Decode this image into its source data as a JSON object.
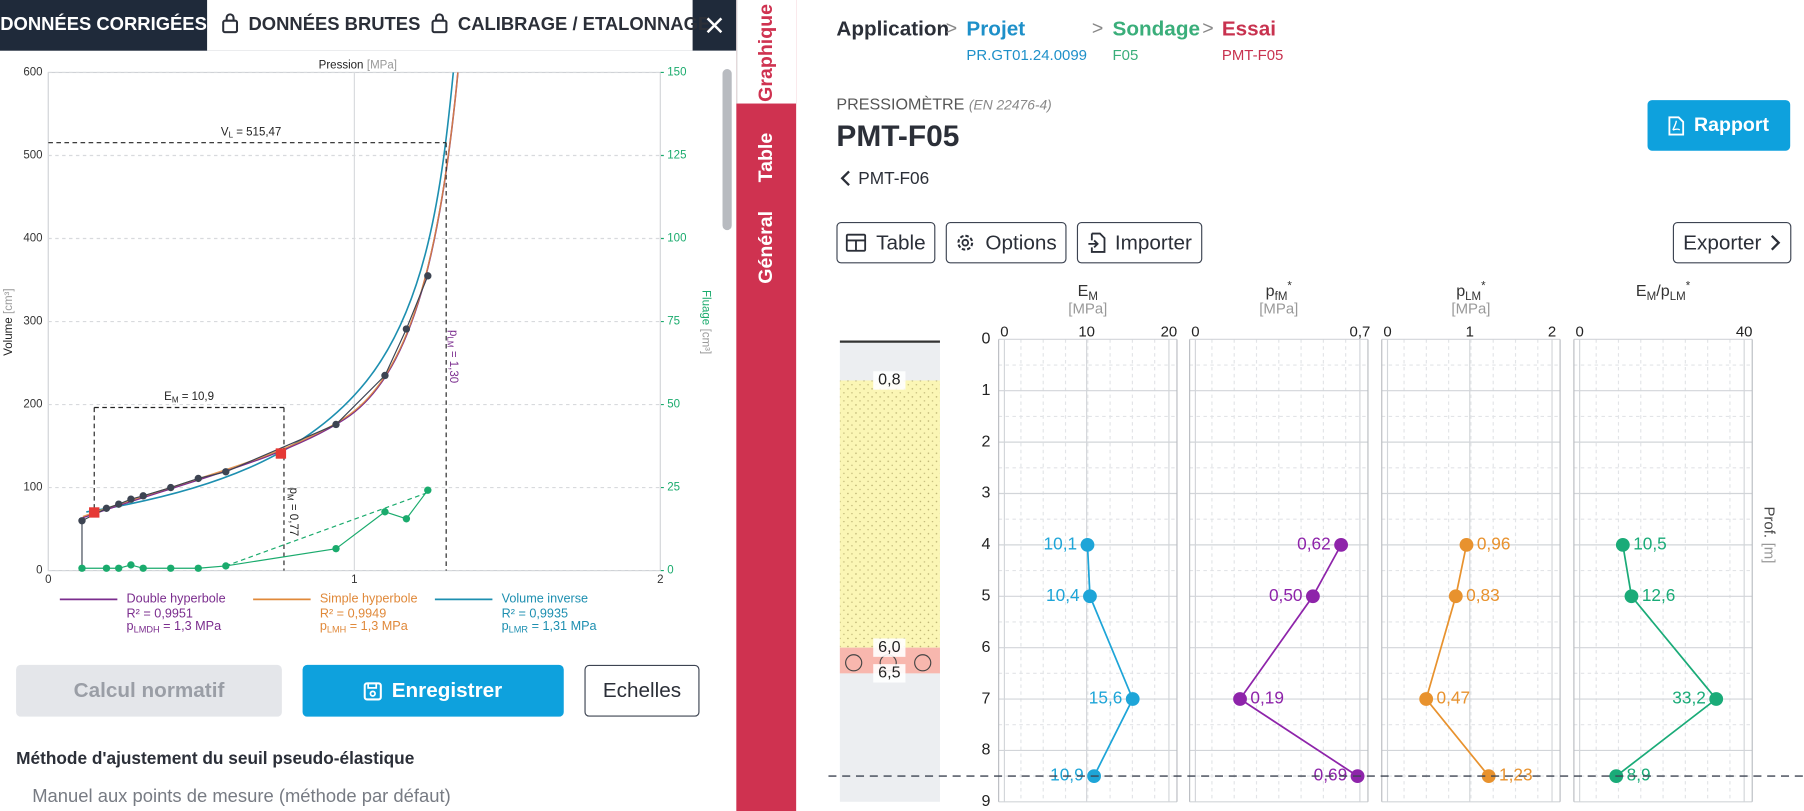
{
  "tabs": {
    "corrected": "DONNÉES CORRIGÉES",
    "raw": "DONNÉES BRUTES",
    "calibration": "CALIBRAGE / ETALONNAGE"
  },
  "side_tabs": [
    "Graphique",
    "Table",
    "Général"
  ],
  "pressure_chart": {
    "type": "scatter",
    "x_label": "Pression",
    "x_unit": "[MPa]",
    "y_unit": "[cm³]",
    "y2_unit": "[cm³]",
    "xlim": [
      0,
      2
    ],
    "xticks": [
      0,
      1,
      2
    ],
    "ylim": [
      0,
      600
    ],
    "yticks": [
      0,
      100,
      200,
      300,
      400,
      500,
      600
    ],
    "y2lim": [
      0,
      150
    ],
    "y2ticks": [
      0,
      25,
      50,
      75,
      100,
      125,
      150
    ],
    "x": [
      0.11,
      0.19,
      0.23,
      0.27,
      0.31,
      0.4,
      0.49,
      0.58,
      0.94,
      1.1,
      1.17,
      1.24
    ],
    "series": [
      {
        "name": "Volume",
        "color": "#3d4452",
        "values": [
          60,
          75,
          80,
          86,
          90,
          100,
          111,
          119,
          176,
          235,
          291,
          355
        ]
      },
      {
        "name": "Fluage",
        "color": "#1aab6d",
        "axis": "y2",
        "values": [
          0.7,
          0.7,
          0.7,
          1.7,
          0.7,
          0.7,
          0.7,
          1.4,
          6.6,
          17.7,
          15.6,
          24.2
        ]
      }
    ],
    "annotations": {
      "vl": {
        "value": 515.47,
        "symbol": "V",
        "sub": "L",
        "text": " = 515,47"
      },
      "plm": {
        "value": 1.3,
        "symbol": "p",
        "sub": "LM",
        "text": " = 1,30"
      },
      "pm": {
        "value": 0.77,
        "symbol": "p",
        "sub": "M",
        "text": " = 0,77"
      },
      "em": {
        "symbol": "E",
        "sub": "M",
        "text": " = 10,9",
        "x": [
          0.15,
          0.76
        ],
        "values": [
          70,
          141
        ]
      }
    },
    "legend": [
      {
        "name": "Double hyperbole",
        "color": "#7b2d8e",
        "r2": "R² = 0,9951",
        "p": {
          "symbol": "p",
          "sub": "LMDH",
          "text": " = 1,3 MPa"
        }
      },
      {
        "name": "Simple hyperbole",
        "color": "#e0893a",
        "r2": "R² = 0,9949",
        "p": {
          "symbol": "p",
          "sub": "LMH",
          "text": " = 1,3 MPa"
        }
      },
      {
        "name": "Volume inverse",
        "color": "#1d8fb0",
        "r2": "R² = 0,9935",
        "p": {
          "symbol": "p",
          "sub": "LMR",
          "text": " = 1,31 MPa"
        }
      }
    ]
  },
  "buttons": {
    "normative": "Calcul normatif",
    "save": "Enregistrer",
    "scales": "Echelles"
  },
  "method": {
    "title": "Méthode d'ajustement du seuil pseudo-élastique",
    "value": "Manuel aux points de mesure (méthode par défaut)"
  },
  "breadcrumb": {
    "root": "Application",
    "items": [
      {
        "label": "Projet",
        "sub": "PR.GT01.24.0099"
      },
      {
        "label": "Sondage",
        "sub": "F05"
      },
      {
        "label": "Essai",
        "sub": "PMT-F05"
      }
    ]
  },
  "header": {
    "kind": "PRESSIOMÈTRE",
    "norm": "(EN 22476-4)",
    "title": "PMT-F05",
    "previous": "PMT-F06",
    "report": "Rapport"
  },
  "toolbar": {
    "table": "Table",
    "options": "Options",
    "import": "Importer",
    "export": "Exporter"
  },
  "profile": {
    "depth_label": "Prof.",
    "depth_unit": "[m]",
    "ylim": [
      0,
      9
    ],
    "yticks": [
      0,
      1,
      2,
      3,
      4,
      5,
      6,
      7,
      8,
      9
    ],
    "depths": [
      4,
      5,
      7,
      8.5
    ],
    "layers": [
      {
        "value": 0.8,
        "label": "0,8"
      },
      {
        "value": 6.0,
        "label": "6,0"
      },
      {
        "value": 6.5,
        "label": "6,5"
      }
    ],
    "columns": [
      {
        "header": [
          {
            "text": "E"
          },
          {
            "text": "M",
            "style": "sub"
          }
        ],
        "unit": "[MPa]",
        "xlim": [
          0,
          20
        ],
        "xticks": [
          0,
          10,
          20
        ],
        "color": "#1ea5d8",
        "values": [
          10.1,
          10.4,
          15.6,
          10.9
        ],
        "value_labels": [
          "10,1",
          "10,4",
          "15,6",
          "10,9"
        ]
      },
      {
        "header": [
          {
            "text": "p"
          },
          {
            "text": "fM",
            "style": "sub"
          },
          {
            "text": "*",
            "style": "sup"
          }
        ],
        "unit": "[MPa]",
        "xlim": [
          0,
          0.7
        ],
        "xticks": [
          0,
          {
            "value": 0.7,
            "label": "0,7"
          }
        ],
        "color": "#8e24aa",
        "values": [
          0.62,
          0.5,
          0.19,
          0.69
        ],
        "value_labels": [
          "0,62",
          "0,50",
          "0,19",
          "0,69"
        ]
      },
      {
        "header": [
          {
            "text": "p"
          },
          {
            "text": "LM",
            "style": "sub"
          },
          {
            "text": "*",
            "style": "sup"
          }
        ],
        "unit": "[MPa]",
        "xlim": [
          0,
          2
        ],
        "xticks": [
          0,
          1,
          2
        ],
        "color": "#e8922e",
        "values": [
          0.96,
          0.83,
          0.47,
          1.23
        ],
        "value_labels": [
          "0,96",
          "0,83",
          "0,47",
          "1,23"
        ]
      },
      {
        "header": [
          {
            "text": "E"
          },
          {
            "text": "M",
            "style": "sub"
          },
          {
            "text": "/p"
          },
          {
            "text": "LM",
            "style": "sub"
          },
          {
            "text": "*",
            "style": "sup"
          }
        ],
        "xlim": [
          0,
          40
        ],
        "xticks": [
          0,
          40
        ],
        "color": "#1aab78",
        "values": [
          10.5,
          12.6,
          33.2,
          8.9
        ],
        "value_labels": [
          "10,5",
          "12,6",
          "33,2",
          "8,9"
        ]
      }
    ]
  }
}
